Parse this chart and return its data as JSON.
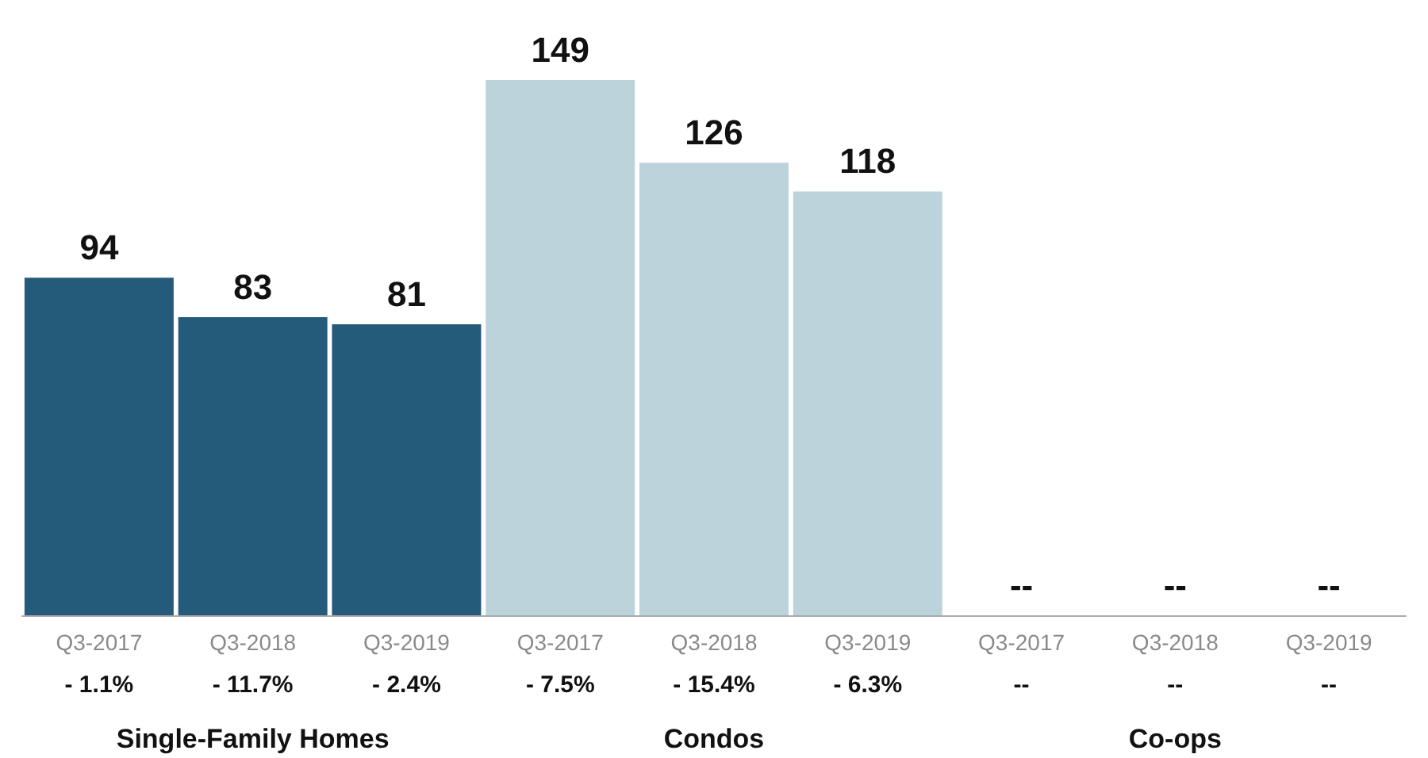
{
  "chart_data": {
    "type": "bar",
    "categories": [
      "Q3-2017",
      "Q3-2018",
      "Q3-2019",
      "Q3-2017",
      "Q3-2018",
      "Q3-2019",
      "Q3-2017",
      "Q3-2018",
      "Q3-2019"
    ],
    "values": [
      94,
      83,
      81,
      149,
      126,
      118,
      null,
      null,
      null
    ],
    "colors": [
      "#245a7a",
      "#245a7a",
      "#245a7a",
      "#bdd3dc",
      "#bdd3dc",
      "#bdd3dc",
      "#bdd3dc",
      "#bdd3dc",
      "#bdd3dc"
    ],
    "data_labels": true,
    "value_labels": [
      "94",
      "83",
      "81",
      "149",
      "126",
      "118",
      "--",
      "--",
      "--"
    ],
    "annotations": [
      "- 1.1%",
      "- 11.7%",
      "- 2.4%",
      "- 7.5%",
      "- 15.4%",
      "- 6.3%",
      "--",
      "--",
      "--",
      "Single-Family Homes",
      "Condos",
      "Co-ops"
    ],
    "orientation": "vertical"
  }
}
